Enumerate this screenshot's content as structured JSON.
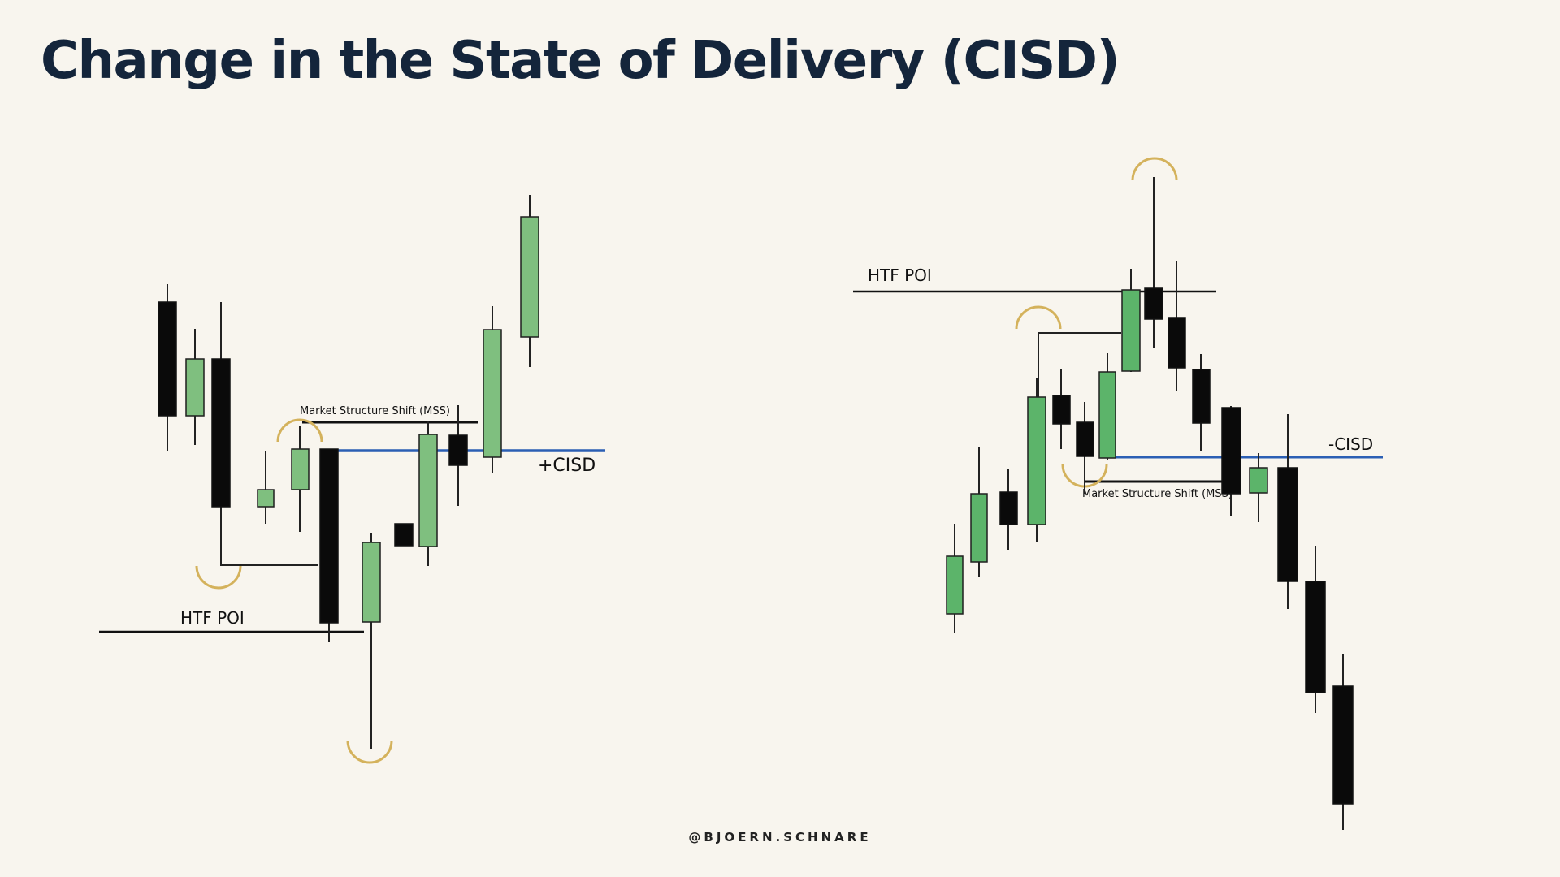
{
  "title": "Change in the State of Delivery (CISD)",
  "footer": "@BJOERN.SCHNARE",
  "colors": {
    "background": "#f8f5ee",
    "bullish_candle": "#7fbf7f",
    "bullish_candle_right": "#5cb46a",
    "bearish_candle": "#0a0a0a",
    "cisd_line": "#2b5fb4",
    "swing_marker": "#d4b25c",
    "title": "#14253b"
  },
  "left_panel": {
    "htf_poi_label": "HTF POI",
    "mss_label": "Market Structure Shift (MSS)",
    "cisd_label": "+CISD"
  },
  "right_panel": {
    "htf_poi_label": "HTF POI",
    "mss_label": "Market Structure Shift (MSS)",
    "cisd_label": "-CISD"
  }
}
